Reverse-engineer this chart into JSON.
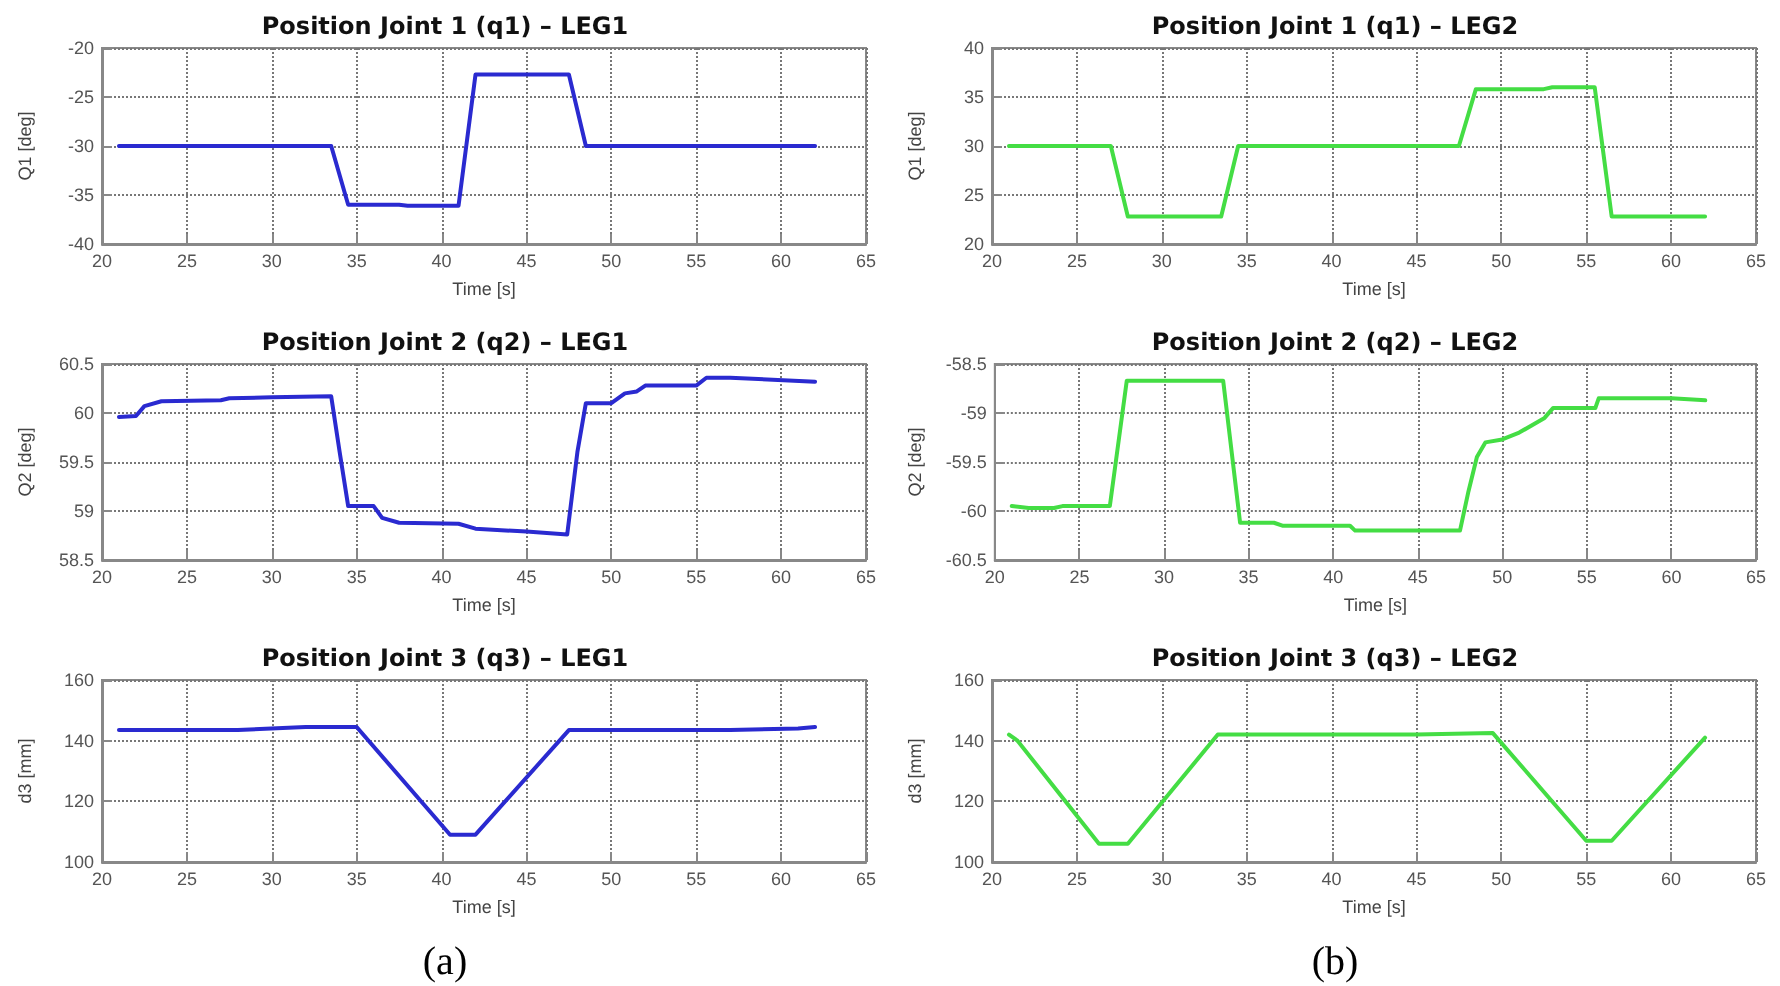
{
  "chart_data": [
    {
      "type": "line",
      "title": "Position Joint 1 (q1) – LEG1",
      "xlabel": "Time [s]",
      "ylabel": "Q1 [deg]",
      "xlim": [
        20,
        65
      ],
      "xticks": [
        20,
        25,
        30,
        35,
        40,
        45,
        50,
        55,
        60,
        65
      ],
      "ylim": [
        -40,
        -20
      ],
      "yticks": [
        -40,
        -35,
        -30,
        -25,
        -20
      ],
      "grid": true,
      "line_style": "solid",
      "series": [
        {
          "color": "#2a2ad0",
          "x": [
            21,
            33.5,
            34.5,
            37.5,
            38,
            41,
            42,
            47.5,
            48.5,
            62
          ],
          "values": [
            -30,
            -30,
            -36,
            -36,
            -36.1,
            -36.1,
            -22.7,
            -22.7,
            -30,
            -30
          ]
        }
      ]
    },
    {
      "type": "line",
      "title": "Position Joint 1 (q1) – LEG2",
      "xlabel": "Time [s]",
      "ylabel": "Q1 [deg]",
      "xlim": [
        20,
        65
      ],
      "xticks": [
        20,
        25,
        30,
        35,
        40,
        45,
        50,
        55,
        60,
        65
      ],
      "ylim": [
        20,
        40
      ],
      "yticks": [
        20,
        25,
        30,
        35,
        40
      ],
      "grid": true,
      "line_style": "solid",
      "series": [
        {
          "color": "#44dd44",
          "x": [
            21,
            27,
            28,
            33.5,
            34.5,
            47.5,
            48.5,
            52.5,
            53,
            55.5,
            56.5,
            62
          ],
          "values": [
            30,
            30,
            22.8,
            22.8,
            30,
            30,
            35.8,
            35.8,
            36,
            36,
            22.8,
            22.8
          ]
        }
      ]
    },
    {
      "type": "line",
      "title": "Position Joint 2 (q2) – LEG1",
      "xlabel": "Time [s]",
      "ylabel": "Q2 [deg]",
      "xlim": [
        20,
        65
      ],
      "xticks": [
        20,
        25,
        30,
        35,
        40,
        45,
        50,
        55,
        60,
        65
      ],
      "ylim": [
        58.5,
        60.5
      ],
      "yticks": [
        58.5,
        59,
        59.5,
        60,
        60.5
      ],
      "grid": true,
      "line_style": "solid",
      "series": [
        {
          "color": "#2a2ad0",
          "x": [
            21,
            22,
            22.5,
            23.5,
            27,
            27.5,
            30,
            33.5,
            34,
            34.5,
            36,
            36.5,
            37.5,
            41,
            42,
            45,
            47.4,
            48,
            48.5,
            50,
            50.8,
            51.5,
            52,
            55,
            55.6,
            57,
            62
          ],
          "values": [
            59.96,
            59.97,
            60.07,
            60.12,
            60.13,
            60.15,
            60.16,
            60.17,
            59.6,
            59.05,
            59.05,
            58.93,
            58.88,
            58.87,
            58.82,
            58.79,
            58.76,
            59.6,
            60.1,
            60.1,
            60.2,
            60.22,
            60.28,
            60.28,
            60.36,
            60.36,
            60.32
          ]
        }
      ]
    },
    {
      "type": "line",
      "title": "Position Joint 2 (q2) – LEG2",
      "xlabel": "Time [s]",
      "ylabel": "Q2 [deg]",
      "xlim": [
        20,
        65
      ],
      "xticks": [
        20,
        25,
        30,
        35,
        40,
        45,
        50,
        55,
        60,
        65
      ],
      "ylim": [
        -60.5,
        -58.5
      ],
      "yticks": [
        -60.5,
        -60,
        -59.5,
        -59,
        -58.5
      ],
      "grid": true,
      "line_style": "solid",
      "series": [
        {
          "color": "#44dd44",
          "x": [
            21,
            22,
            23.5,
            24,
            26.8,
            27.8,
            33.5,
            34.5,
            36.5,
            37,
            41,
            41.3,
            47.5,
            48,
            48.5,
            49,
            50,
            51,
            52.5,
            53,
            55.5,
            55.7,
            60,
            62
          ],
          "values": [
            -59.95,
            -59.97,
            -59.97,
            -59.95,
            -59.95,
            -58.67,
            -58.67,
            -60.12,
            -60.12,
            -60.15,
            -60.15,
            -60.2,
            -60.2,
            -59.8,
            -59.45,
            -59.3,
            -59.27,
            -59.2,
            -59.05,
            -58.95,
            -58.95,
            -58.85,
            -58.85,
            -58.87
          ]
        }
      ]
    },
    {
      "type": "line",
      "title": "Position Joint 3 (q3) – LEG1",
      "xlabel": "Time [s]",
      "ylabel": "d3 [mm]",
      "xlim": [
        20,
        65
      ],
      "xticks": [
        20,
        25,
        30,
        35,
        40,
        45,
        50,
        55,
        60,
        65
      ],
      "ylim": [
        100,
        160
      ],
      "yticks": [
        100,
        120,
        140,
        160
      ],
      "grid": true,
      "line_style": "solid",
      "annotations": [
        "(a)"
      ],
      "series": [
        {
          "color": "#2a2ad0",
          "x": [
            21,
            28,
            32,
            35,
            40.5,
            42,
            47.5,
            57,
            61,
            62
          ],
          "values": [
            143.5,
            143.5,
            144.5,
            144.5,
            109,
            109,
            143.5,
            143.5,
            144,
            144.5
          ]
        }
      ]
    },
    {
      "type": "line",
      "title": "Position Joint 3 (q3) – LEG2",
      "xlabel": "Time [s]",
      "ylabel": "d3 [mm]",
      "xlim": [
        20,
        65
      ],
      "xticks": [
        20,
        25,
        30,
        35,
        40,
        45,
        50,
        55,
        60,
        65
      ],
      "ylim": [
        100,
        160
      ],
      "yticks": [
        100,
        120,
        140,
        160
      ],
      "grid": true,
      "line_style": "solid",
      "annotations": [
        "(b)"
      ],
      "series": [
        {
          "color": "#44dd44",
          "x": [
            21,
            21.5,
            26.3,
            28,
            33.3,
            45,
            49.5,
            55,
            56.5,
            62
          ],
          "values": [
            142,
            140,
            106,
            106,
            142,
            142,
            142.5,
            107,
            107,
            141
          ]
        }
      ]
    }
  ]
}
